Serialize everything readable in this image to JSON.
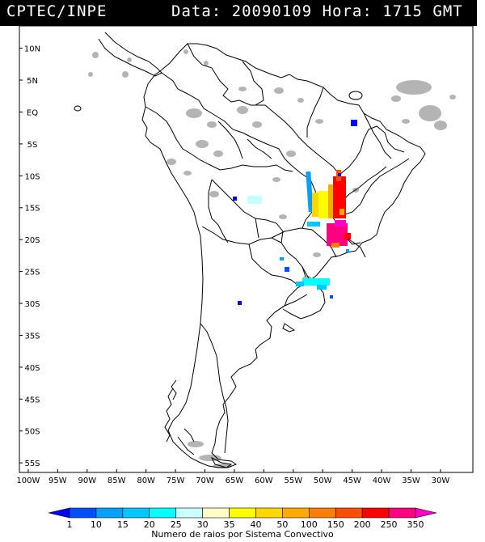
{
  "header": {
    "source": "CPTEC/INPE",
    "date_text": "Data: 20090109 Hora: 1715 GMT"
  },
  "map": {
    "lat_labels": [
      "10N",
      "5N",
      "EQ",
      "5S",
      "10S",
      "15S",
      "20S",
      "25S",
      "30S",
      "35S",
      "40S",
      "45S",
      "50S",
      "55S"
    ],
    "lon_labels": [
      "100W",
      "95W",
      "90W",
      "85W",
      "80W",
      "75W",
      "70W",
      "65W",
      "60W",
      "55W",
      "50W",
      "45W",
      "40W",
      "35W",
      "30W"
    ],
    "lat_values": [
      10,
      5,
      0,
      -5,
      -10,
      -15,
      -20,
      -25,
      -30,
      -35,
      -40,
      -45,
      -50,
      -55
    ],
    "lon_values": [
      -100,
      -95,
      -90,
      -85,
      -80,
      -75,
      -70,
      -65,
      -60,
      -55,
      -50,
      -45,
      -40,
      -35,
      -30
    ]
  },
  "legend": {
    "labels": [
      "1",
      "10",
      "15",
      "20",
      "25",
      "30",
      "35",
      "40",
      "50",
      "100",
      "150",
      "200",
      "250",
      "350"
    ],
    "colors": [
      "#0000ff",
      "#0050ff",
      "#00a0ff",
      "#00c8ff",
      "#00ffff",
      "#c8ffff",
      "#ffffc8",
      "#ffff00",
      "#ffd700",
      "#ffaa00",
      "#ff8000",
      "#ff5000",
      "#ff0000",
      "#ff0080",
      "#ff00c8"
    ],
    "caption": "Numero de raios por Sistema Convectivo"
  }
}
